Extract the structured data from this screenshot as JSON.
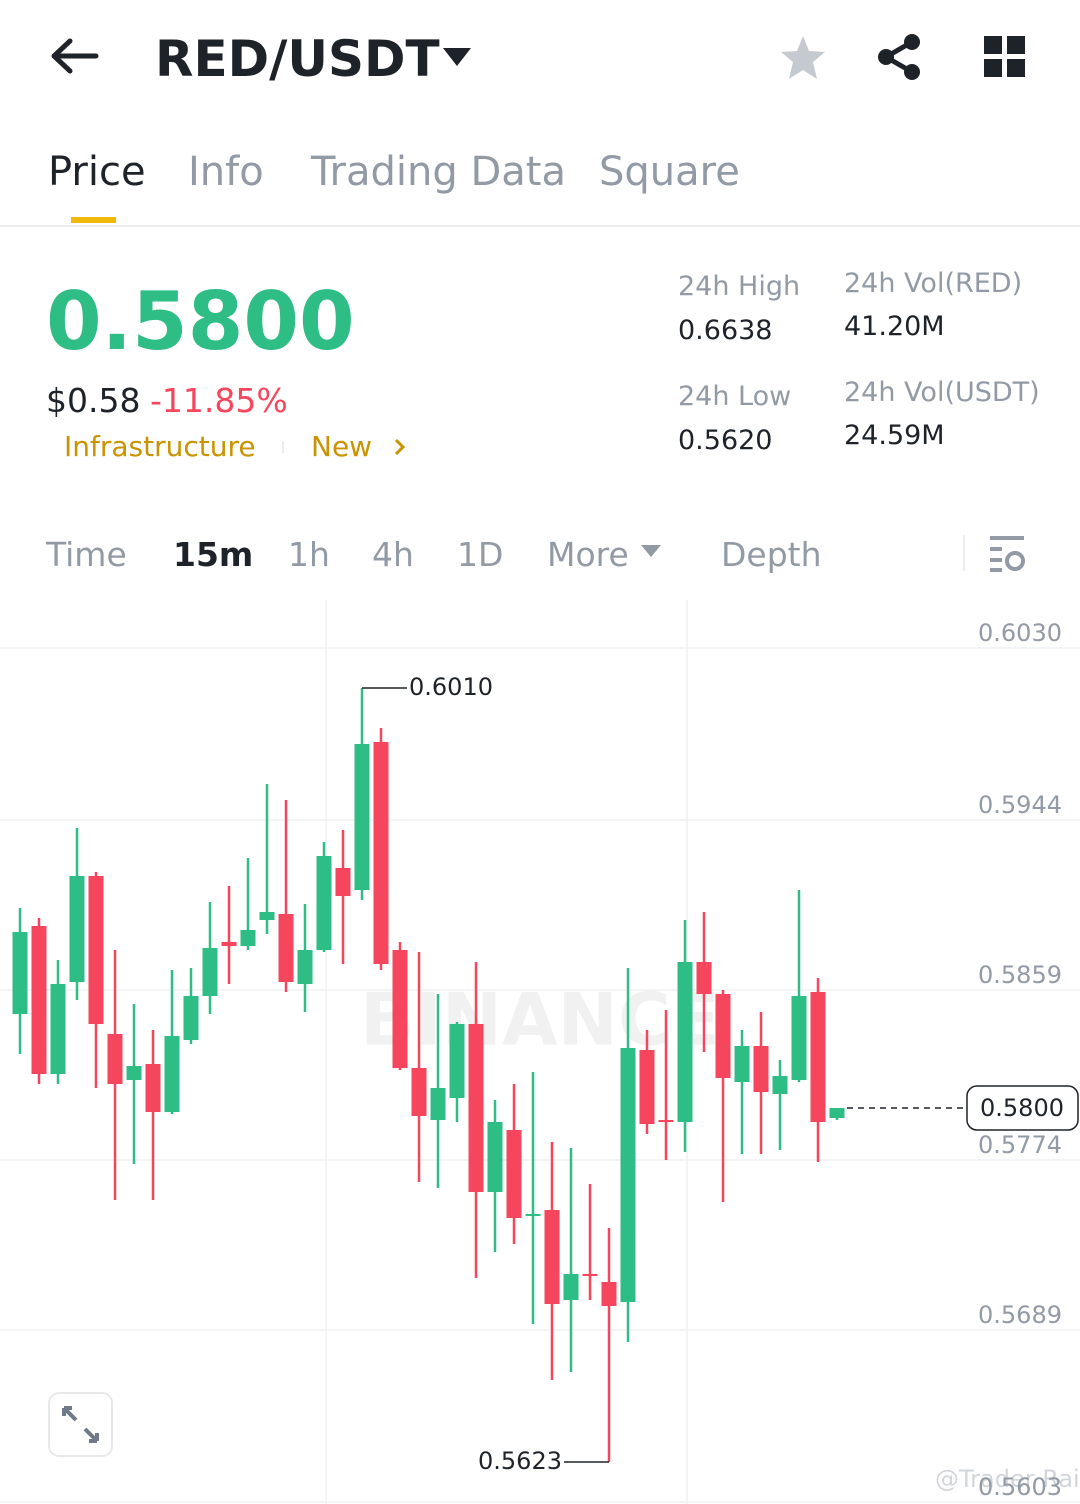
{
  "header": {
    "pair": "RED/USDT"
  },
  "tabs": [
    "Price",
    "Info",
    "Trading Data",
    "Square"
  ],
  "summary": {
    "last_price": "0.5800",
    "usd_price": "$0.58",
    "change": "-11.85%",
    "tags": [
      "Infrastructure",
      "New"
    ],
    "stats": [
      {
        "label": "24h High",
        "value": "0.6638"
      },
      {
        "label": "24h Vol(RED)",
        "value": "41.20M"
      },
      {
        "label": "24h Low",
        "value": "0.5620"
      },
      {
        "label": "24h Vol(USDT)",
        "value": "24.59M"
      }
    ]
  },
  "intervals": [
    "Time",
    "15m",
    "1h",
    "4h",
    "1D",
    "More",
    "Depth"
  ],
  "chart_data": {
    "type": "candlestick",
    "up_color": "#2ebd85",
    "down_color": "#f6465d",
    "open": [
      0.5847,
      0.5891,
      0.5817,
      0.5863,
      0.5916,
      0.5837,
      0.5814,
      0.5822,
      0.5798,
      0.5834,
      0.5856,
      0.5883,
      0.5881,
      0.5894,
      0.5897,
      0.5862,
      0.5879,
      0.592,
      0.5909,
      0.5983,
      0.5879,
      0.582,
      0.5794,
      0.5805,
      0.5842,
      0.5758,
      0.5789,
      0.5746,
      0.5749,
      0.5704,
      0.5717,
      0.5713,
      0.5703,
      0.5829,
      0.5794,
      0.5793,
      0.5873,
      0.5857,
      0.5813,
      0.5831,
      0.5807,
      0.5814,
      0.5858,
      0.5795
    ],
    "high": [
      0.59,
      0.5895,
      0.5874,
      0.594,
      0.5918,
      0.5879,
      0.5852,
      0.5839,
      0.5869,
      0.587,
      0.5903,
      0.5911,
      0.5925,
      0.5962,
      0.5954,
      0.5902,
      0.5933,
      0.5939,
      0.601,
      0.599,
      0.5883,
      0.5878,
      0.5857,
      0.5843,
      0.5873,
      0.5804,
      0.5812,
      0.5818,
      0.5783,
      0.578,
      0.5762,
      0.574,
      0.587,
      0.5839,
      0.5849,
      0.5894,
      0.5898,
      0.5859,
      0.5839,
      0.5848,
      0.5824,
      0.5909,
      0.5865,
      0.58
    ],
    "low": [
      0.5827,
      0.5812,
      0.5812,
      0.5854,
      0.581,
      0.5754,
      0.5772,
      0.5754,
      0.5797,
      0.5832,
      0.5847,
      0.5862,
      0.5879,
      0.5887,
      0.5858,
      0.5848,
      0.5878,
      0.5872,
      0.5904,
      0.5869,
      0.5819,
      0.5763,
      0.576,
      0.5793,
      0.5715,
      0.5728,
      0.5732,
      0.5692,
      0.5664,
      0.5668,
      0.5704,
      0.5623,
      0.5683,
      0.5787,
      0.5774,
      0.5778,
      0.5828,
      0.5753,
      0.5777,
      0.5777,
      0.5779,
      0.5813,
      0.5773,
      0.5794
    ],
    "close": [
      0.5888,
      0.5817,
      0.5862,
      0.5916,
      0.5842,
      0.5812,
      0.5821,
      0.5798,
      0.5836,
      0.5856,
      0.588,
      0.5881,
      0.5889,
      0.5898,
      0.5863,
      0.5879,
      0.5926,
      0.5906,
      0.5982,
      0.5872,
      0.582,
      0.5796,
      0.581,
      0.5842,
      0.5758,
      0.5793,
      0.5745,
      0.5747,
      0.5702,
      0.5717,
      0.5716,
      0.5701,
      0.583,
      0.5792,
      0.5793,
      0.5873,
      0.5857,
      0.5815,
      0.5831,
      0.5808,
      0.5816,
      0.5856,
      0.5793,
      0.58
    ],
    "ylim": [
      0.5602,
      0.6054
    ],
    "yticks": [
      {
        "value": 0.603,
        "label": "0.6030"
      },
      0.5944,
      0.5859,
      0.5774,
      0.5689,
      0.5603
    ],
    "grid": true,
    "high_label": {
      "value": 0.601,
      "label": "0.6010"
    },
    "low_label": 0.5623,
    "last_price_label": {
      "value": 0.58,
      "label": "0.5800"
    },
    "watermark": "BINANCE"
  },
  "watermark": "@Trader Rai"
}
